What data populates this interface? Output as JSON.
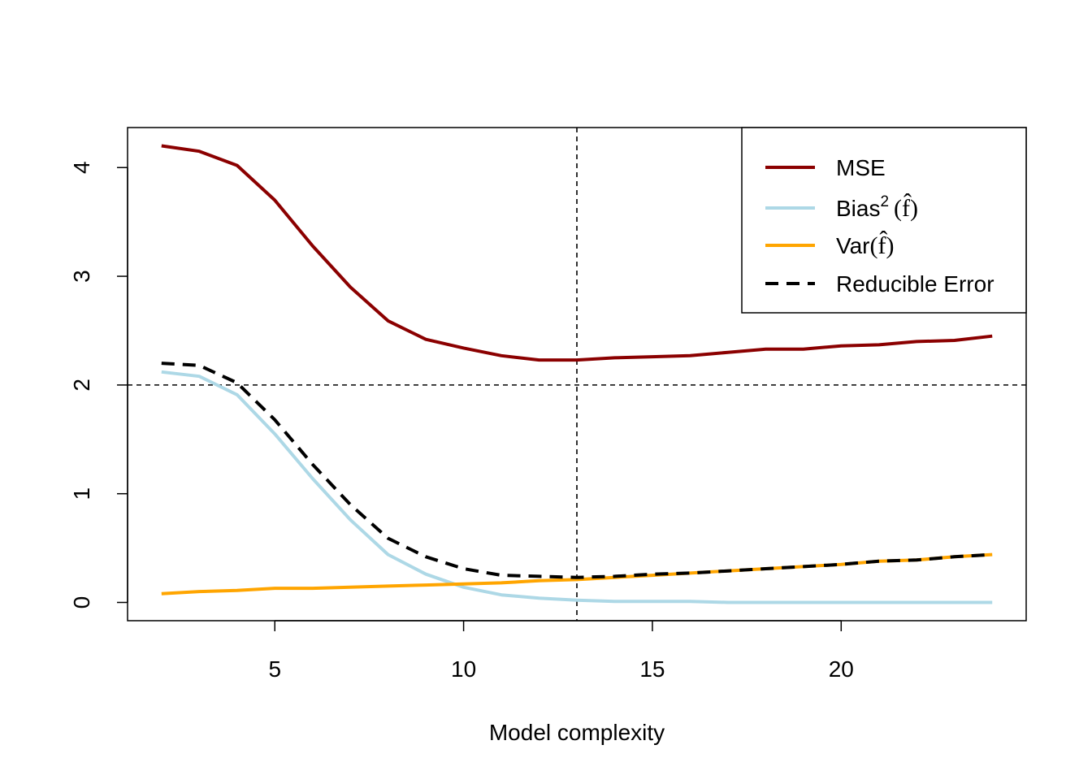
{
  "chart_data": {
    "type": "line",
    "title": "",
    "xlabel": "Model complexity",
    "ylabel": "",
    "xlim": [
      1.1,
      24.9
    ],
    "ylim": [
      -0.168,
      4.368
    ],
    "x_ticks": [
      5,
      10,
      15,
      20
    ],
    "y_ticks": [
      0,
      1,
      2,
      3,
      4
    ],
    "x": [
      2,
      3,
      4,
      5,
      6,
      7,
      8,
      9,
      10,
      11,
      12,
      13,
      14,
      15,
      16,
      17,
      18,
      19,
      20,
      21,
      22,
      23,
      24
    ],
    "series": [
      {
        "name": "MSE",
        "color": "#8B0000",
        "dash": "solid",
        "values": [
          4.2,
          4.15,
          4.02,
          3.7,
          3.28,
          2.9,
          2.59,
          2.42,
          2.34,
          2.27,
          2.23,
          2.23,
          2.25,
          2.26,
          2.27,
          2.3,
          2.33,
          2.33,
          2.36,
          2.37,
          2.4,
          2.41,
          2.45
        ]
      },
      {
        "name": "Bias",
        "legend_superscript": "2",
        "legend_math": "(f̂)",
        "color": "#ADD8E6",
        "dash": "solid",
        "values": [
          2.12,
          2.08,
          1.91,
          1.55,
          1.14,
          0.76,
          0.44,
          0.26,
          0.14,
          0.07,
          0.04,
          0.02,
          0.01,
          0.01,
          0.01,
          0,
          0,
          0,
          0,
          0,
          0,
          0,
          0
        ]
      },
      {
        "name": "Var",
        "legend_math": "(f̂)",
        "color": "#FFA500",
        "dash": "solid",
        "values": [
          0.08,
          0.1,
          0.11,
          0.13,
          0.13,
          0.14,
          0.15,
          0.16,
          0.17,
          0.18,
          0.2,
          0.21,
          0.23,
          0.25,
          0.27,
          0.29,
          0.31,
          0.33,
          0.35,
          0.38,
          0.39,
          0.42,
          0.44
        ]
      },
      {
        "name": "Reducible Error",
        "color": "#000000",
        "dash": "dashed",
        "values": [
          2.2,
          2.18,
          2.02,
          1.68,
          1.27,
          0.9,
          0.59,
          0.42,
          0.31,
          0.25,
          0.24,
          0.23,
          0.24,
          0.26,
          0.27,
          0.29,
          0.31,
          0.33,
          0.35,
          0.38,
          0.39,
          0.42,
          0.44
        ]
      }
    ],
    "reference_lines": {
      "vertical_x": 13,
      "horizontal_y": 2,
      "style": "dotted"
    },
    "legend_position": "top-right",
    "grid": false
  }
}
